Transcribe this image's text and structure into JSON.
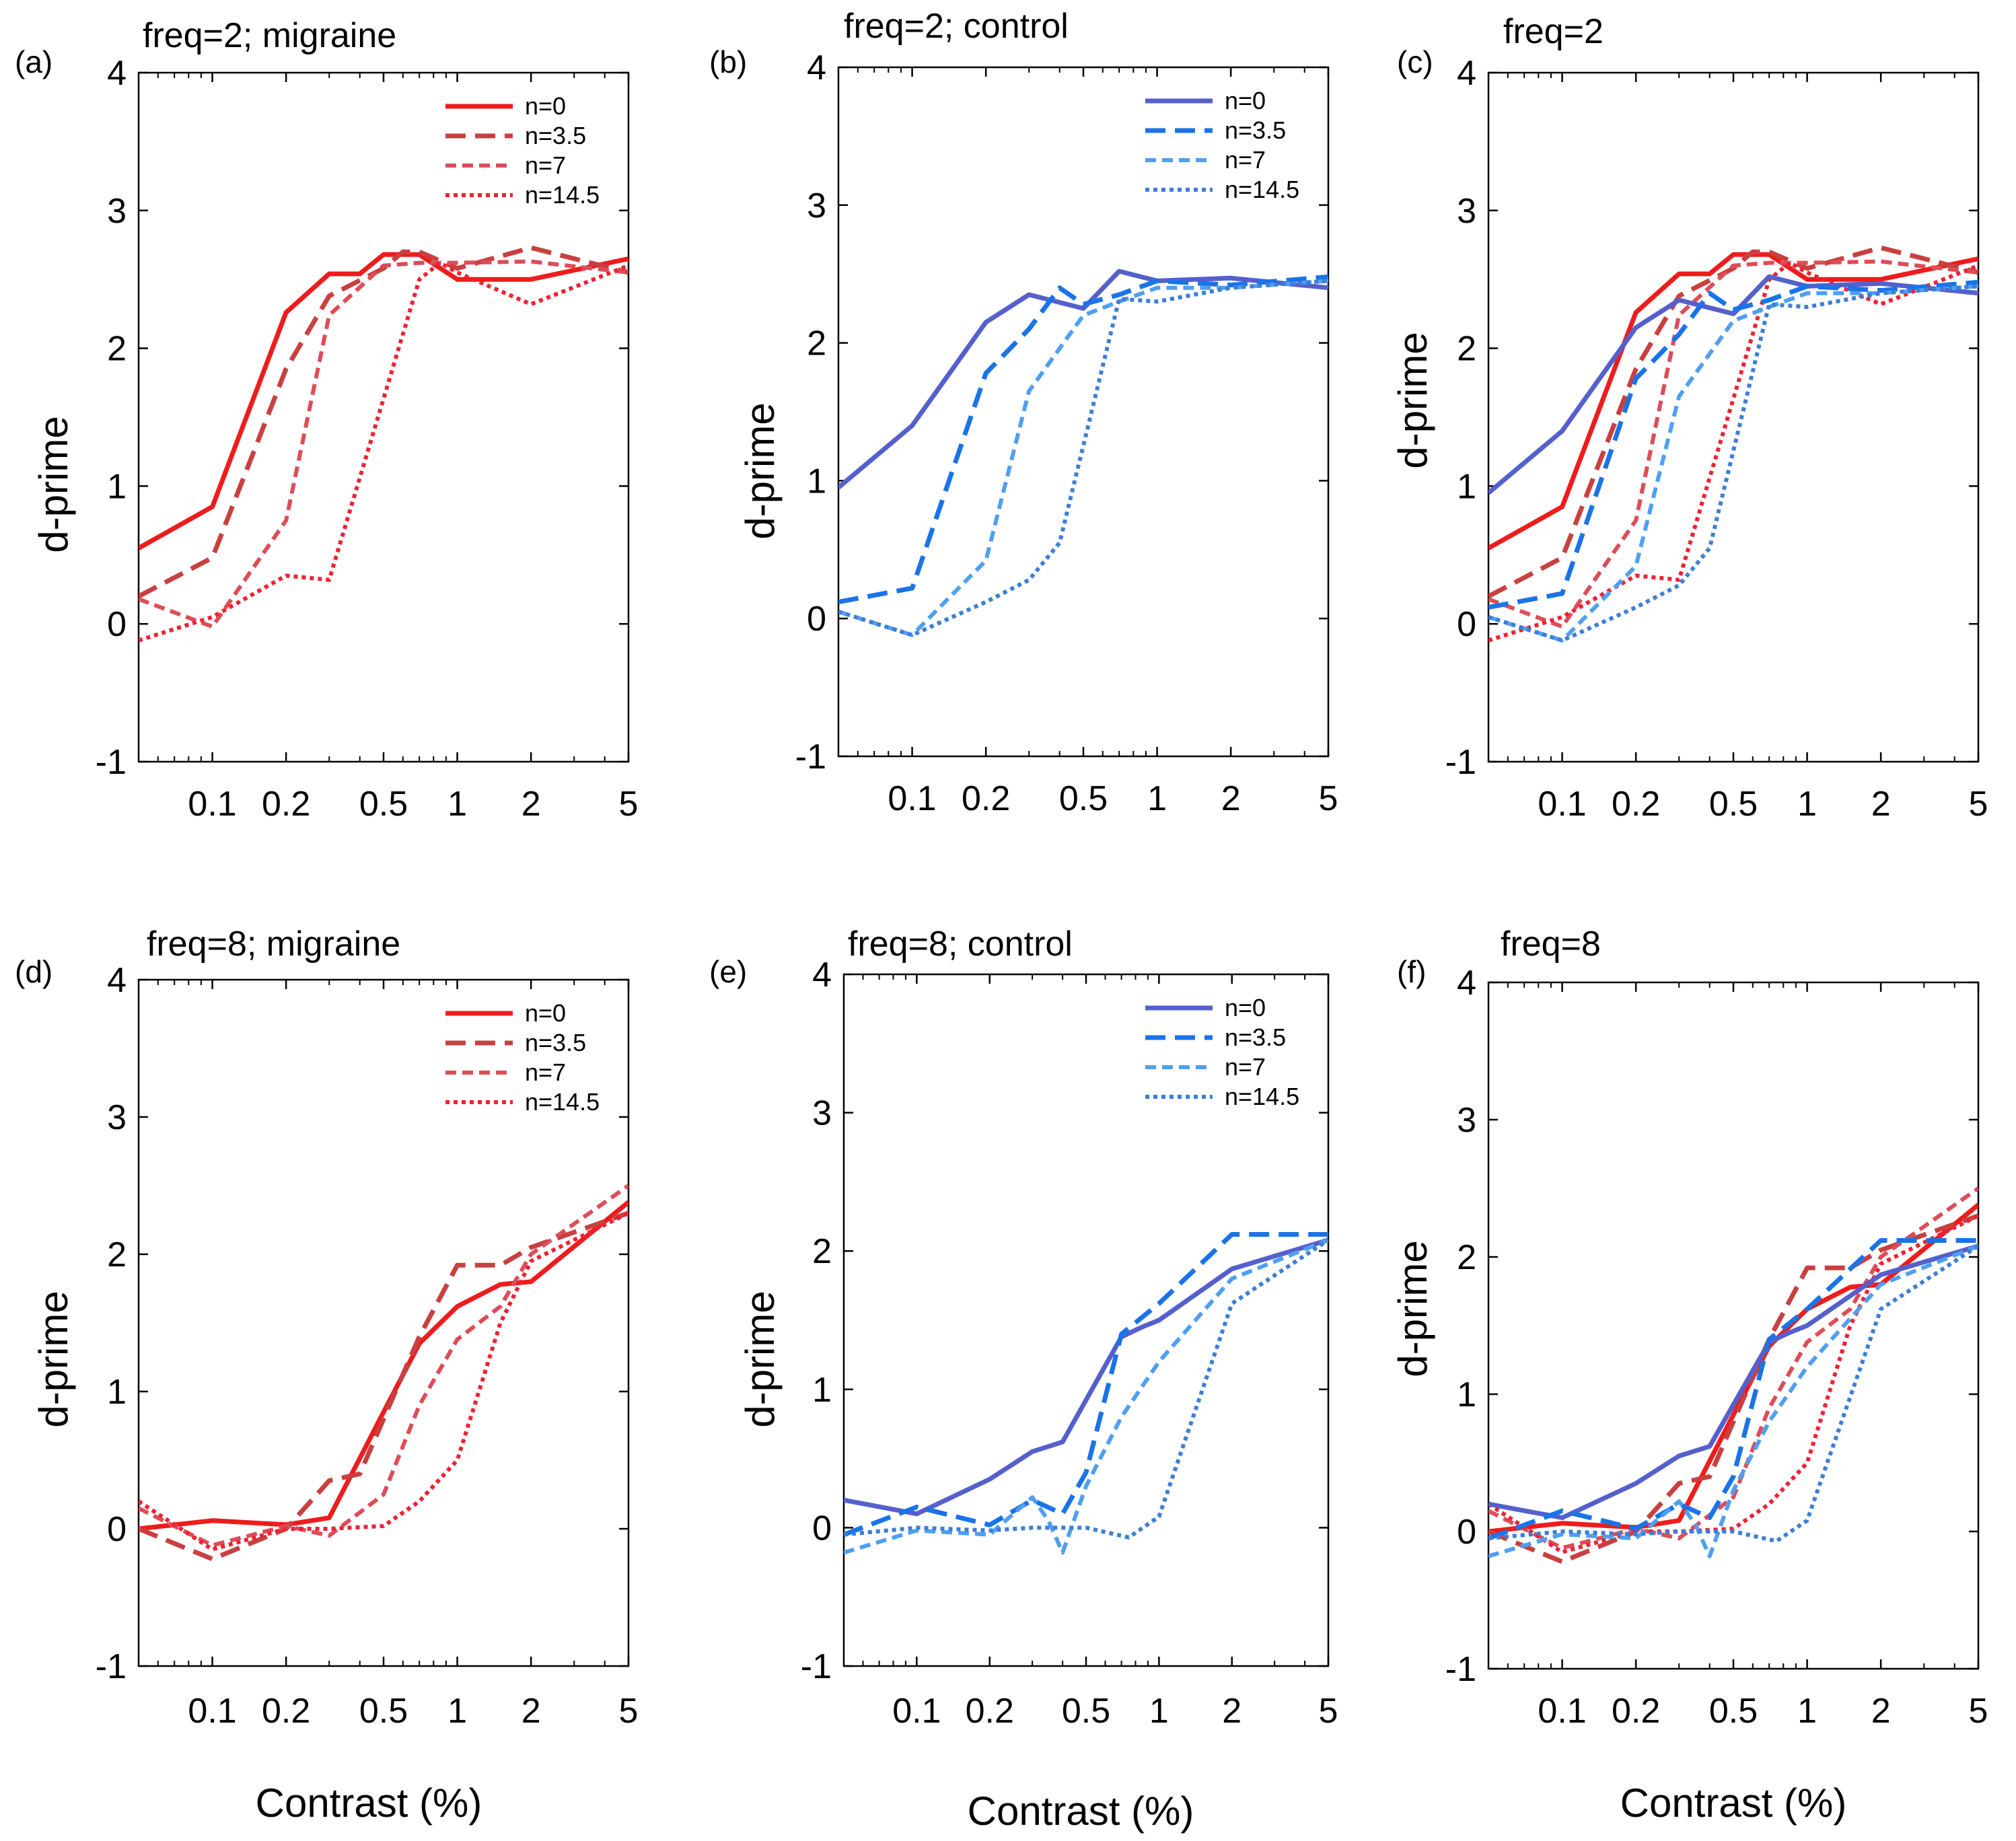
{
  "figure": {
    "x_axis_label": "Contrast (%)",
    "y_axis_label": "d-prime"
  },
  "colors": {
    "m_solid": "#ee1c1c",
    "m_35": "#c94040",
    "m_7": "#dd4d58",
    "m_145": "#ee2233",
    "c_solid": "#5560cc",
    "c_35": "#1a73e8",
    "c_7": "#4f9ff2",
    "c_145": "#3d7ed6"
  },
  "chart_data": [
    {
      "id": "a",
      "letter": "(a)",
      "title": "freq=2; migraine",
      "type": "line",
      "x_scale": "log",
      "xlim": [
        0.05,
        5
      ],
      "ylim": [
        -1,
        4
      ],
      "x_ticks": [
        "0.1",
        "0.2",
        "0.5",
        "1",
        "2",
        "5"
      ],
      "y_ticks": [
        "-1",
        "0",
        "1",
        "2",
        "3",
        "4"
      ],
      "legend": "top-right",
      "legend_group": "migraine",
      "series": [
        {
          "name": "n=0",
          "key": "m_solid",
          "dash": "solid",
          "x": [
            0.05,
            0.1,
            0.2,
            0.3,
            0.4,
            0.5,
            0.7,
            1,
            2,
            5
          ],
          "y": [
            0.55,
            0.85,
            2.26,
            2.54,
            2.54,
            2.68,
            2.68,
            2.5,
            2.5,
            2.65
          ]
        },
        {
          "name": "n=3.5",
          "key": "m_35",
          "dash": "dash",
          "x": [
            0.05,
            0.1,
            0.2,
            0.3,
            0.5,
            0.6,
            0.7,
            1,
            2,
            5
          ],
          "y": [
            0.2,
            0.48,
            1.85,
            2.38,
            2.58,
            2.7,
            2.7,
            2.58,
            2.73,
            2.55
          ]
        },
        {
          "name": "n=7",
          "key": "m_7",
          "dash": "shortdash",
          "x": [
            0.05,
            0.1,
            0.2,
            0.3,
            0.5,
            0.7,
            1,
            2,
            5
          ],
          "y": [
            0.18,
            -0.02,
            0.75,
            2.24,
            2.6,
            2.62,
            2.62,
            2.63,
            2.55
          ]
        },
        {
          "name": "n=14.5",
          "key": "m_145",
          "dash": "dot",
          "x": [
            0.05,
            0.1,
            0.2,
            0.3,
            0.7,
            0.85,
            1,
            2,
            5
          ],
          "y": [
            -0.12,
            0.05,
            0.35,
            0.32,
            2.5,
            2.62,
            2.55,
            2.32,
            2.6
          ]
        }
      ]
    },
    {
      "id": "b",
      "letter": "(b)",
      "title": "freq=2; control",
      "type": "line",
      "x_scale": "log",
      "xlim": [
        0.05,
        5
      ],
      "ylim": [
        -1,
        4
      ],
      "x_ticks": [
        "0.1",
        "0.2",
        "0.5",
        "1",
        "2",
        "5"
      ],
      "y_ticks": [
        "-1",
        "0",
        "1",
        "2",
        "3",
        "4"
      ],
      "legend": "top-right",
      "legend_group": "control",
      "series": [
        {
          "name": "n=0",
          "key": "c_solid",
          "dash": "solid",
          "x": [
            0.05,
            0.1,
            0.2,
            0.3,
            0.5,
            0.7,
            1,
            2,
            5
          ],
          "y": [
            0.95,
            1.4,
            2.15,
            2.35,
            2.25,
            2.52,
            2.45,
            2.47,
            2.4
          ]
        },
        {
          "name": "n=3.5",
          "key": "c_35",
          "dash": "dash",
          "x": [
            0.05,
            0.1,
            0.2,
            0.3,
            0.4,
            0.5,
            0.7,
            1,
            2,
            5
          ],
          "y": [
            0.12,
            0.22,
            1.78,
            2.1,
            2.4,
            2.28,
            2.35,
            2.45,
            2.42,
            2.48
          ]
        },
        {
          "name": "n=7",
          "key": "c_7",
          "dash": "shortdash",
          "x": [
            0.05,
            0.1,
            0.2,
            0.3,
            0.5,
            0.7,
            1,
            2,
            5
          ],
          "y": [
            0.05,
            -0.12,
            0.42,
            1.65,
            2.2,
            2.3,
            2.4,
            2.4,
            2.45
          ]
        },
        {
          "name": "n=14.5",
          "key": "c_145",
          "dash": "dot",
          "x": [
            0.05,
            0.1,
            0.2,
            0.3,
            0.4,
            0.7,
            1,
            2,
            5
          ],
          "y": [
            0.05,
            -0.12,
            0.12,
            0.28,
            0.55,
            2.32,
            2.3,
            2.4,
            2.45
          ]
        }
      ]
    },
    {
      "id": "c",
      "letter": "(c)",
      "title": "freq=2",
      "type": "line",
      "x_scale": "log",
      "xlim": [
        0.05,
        5
      ],
      "ylim": [
        -1,
        4
      ],
      "x_ticks": [
        "0.1",
        "0.2",
        "0.5",
        "1",
        "2",
        "5"
      ],
      "y_ticks": [
        "-1",
        "0",
        "1",
        "2",
        "3",
        "4"
      ],
      "legend": "none",
      "combine": [
        "a",
        "b"
      ]
    },
    {
      "id": "d",
      "letter": "(d)",
      "title": "freq=8; migraine",
      "type": "line",
      "x_scale": "log",
      "xlim": [
        0.05,
        5
      ],
      "ylim": [
        -1,
        4
      ],
      "x_ticks": [
        "0.1",
        "0.2",
        "0.5",
        "1",
        "2",
        "5"
      ],
      "y_ticks": [
        "-1",
        "0",
        "1",
        "2",
        "3",
        "4"
      ],
      "legend": "top-right",
      "legend_group": "migraine",
      "series": [
        {
          "name": "n=0",
          "key": "m_solid",
          "dash": "solid",
          "x": [
            0.05,
            0.1,
            0.2,
            0.3,
            0.5,
            0.7,
            1,
            1.5,
            2,
            5
          ],
          "y": [
            0.0,
            0.06,
            0.03,
            0.08,
            0.85,
            1.35,
            1.62,
            1.78,
            1.8,
            2.38
          ]
        },
        {
          "name": "n=3.5",
          "key": "m_35",
          "dash": "dash",
          "x": [
            0.05,
            0.1,
            0.2,
            0.3,
            0.4,
            0.5,
            0.7,
            1,
            1.5,
            2,
            5
          ],
          "y": [
            0.0,
            -0.22,
            0.0,
            0.35,
            0.4,
            0.8,
            1.4,
            1.92,
            1.92,
            2.05,
            2.3
          ]
        },
        {
          "name": "n=7",
          "key": "m_7",
          "dash": "shortdash",
          "x": [
            0.05,
            0.1,
            0.2,
            0.3,
            0.5,
            0.7,
            1,
            1.5,
            2,
            5
          ],
          "y": [
            0.15,
            -0.12,
            0.02,
            -0.05,
            0.25,
            0.9,
            1.38,
            1.62,
            2.0,
            2.5
          ]
        },
        {
          "name": "n=14.5",
          "key": "m_145",
          "dash": "dot",
          "x": [
            0.05,
            0.1,
            0.2,
            0.3,
            0.5,
            0.7,
            1,
            1.5,
            2,
            5
          ],
          "y": [
            0.2,
            -0.15,
            0.0,
            0.0,
            0.02,
            0.2,
            0.5,
            1.5,
            1.95,
            2.3
          ]
        }
      ]
    },
    {
      "id": "e",
      "letter": "(e)",
      "title": "freq=8; control",
      "type": "line",
      "x_scale": "log",
      "xlim": [
        0.05,
        5
      ],
      "ylim": [
        -1,
        4
      ],
      "x_ticks": [
        "0.1",
        "0.2",
        "0.5",
        "1",
        "2",
        "5"
      ],
      "y_ticks": [
        "-1",
        "0",
        "1",
        "2",
        "3",
        "4"
      ],
      "legend": "top-right",
      "legend_group": "control",
      "series": [
        {
          "name": "n=0",
          "key": "c_solid",
          "dash": "solid",
          "x": [
            0.05,
            0.1,
            0.2,
            0.3,
            0.4,
            0.7,
            0.85,
            1,
            2,
            5
          ],
          "y": [
            0.2,
            0.1,
            0.35,
            0.55,
            0.62,
            1.38,
            1.45,
            1.5,
            1.87,
            2.08
          ]
        },
        {
          "name": "n=3.5",
          "key": "c_35",
          "dash": "dash",
          "x": [
            0.05,
            0.1,
            0.2,
            0.3,
            0.4,
            0.5,
            0.7,
            1,
            2,
            5
          ],
          "y": [
            -0.05,
            0.15,
            0.02,
            0.2,
            0.1,
            0.4,
            1.4,
            1.62,
            2.12,
            2.12
          ]
        },
        {
          "name": "n=7",
          "key": "c_7",
          "dash": "shortdash",
          "x": [
            0.05,
            0.1,
            0.2,
            0.3,
            0.35,
            0.4,
            0.5,
            0.7,
            1,
            2,
            5
          ],
          "y": [
            -0.18,
            -0.02,
            -0.05,
            0.22,
            0.05,
            -0.18,
            0.3,
            0.8,
            1.2,
            1.8,
            2.08
          ]
        },
        {
          "name": "n=14.5",
          "key": "c_145",
          "dash": "dot",
          "x": [
            0.05,
            0.1,
            0.2,
            0.3,
            0.5,
            0.75,
            1,
            2,
            5
          ],
          "y": [
            -0.05,
            0.0,
            -0.02,
            0.0,
            0.0,
            -0.07,
            0.08,
            1.62,
            2.08
          ]
        }
      ]
    },
    {
      "id": "f",
      "letter": "(f)",
      "title": "freq=8",
      "type": "line",
      "x_scale": "log",
      "xlim": [
        0.05,
        5
      ],
      "ylim": [
        -1,
        4
      ],
      "x_ticks": [
        "0.1",
        "0.2",
        "0.5",
        "1",
        "2",
        "5"
      ],
      "y_ticks": [
        "-1",
        "0",
        "1",
        "2",
        "3",
        "4"
      ],
      "legend": "none",
      "combine": [
        "d",
        "e"
      ]
    }
  ]
}
